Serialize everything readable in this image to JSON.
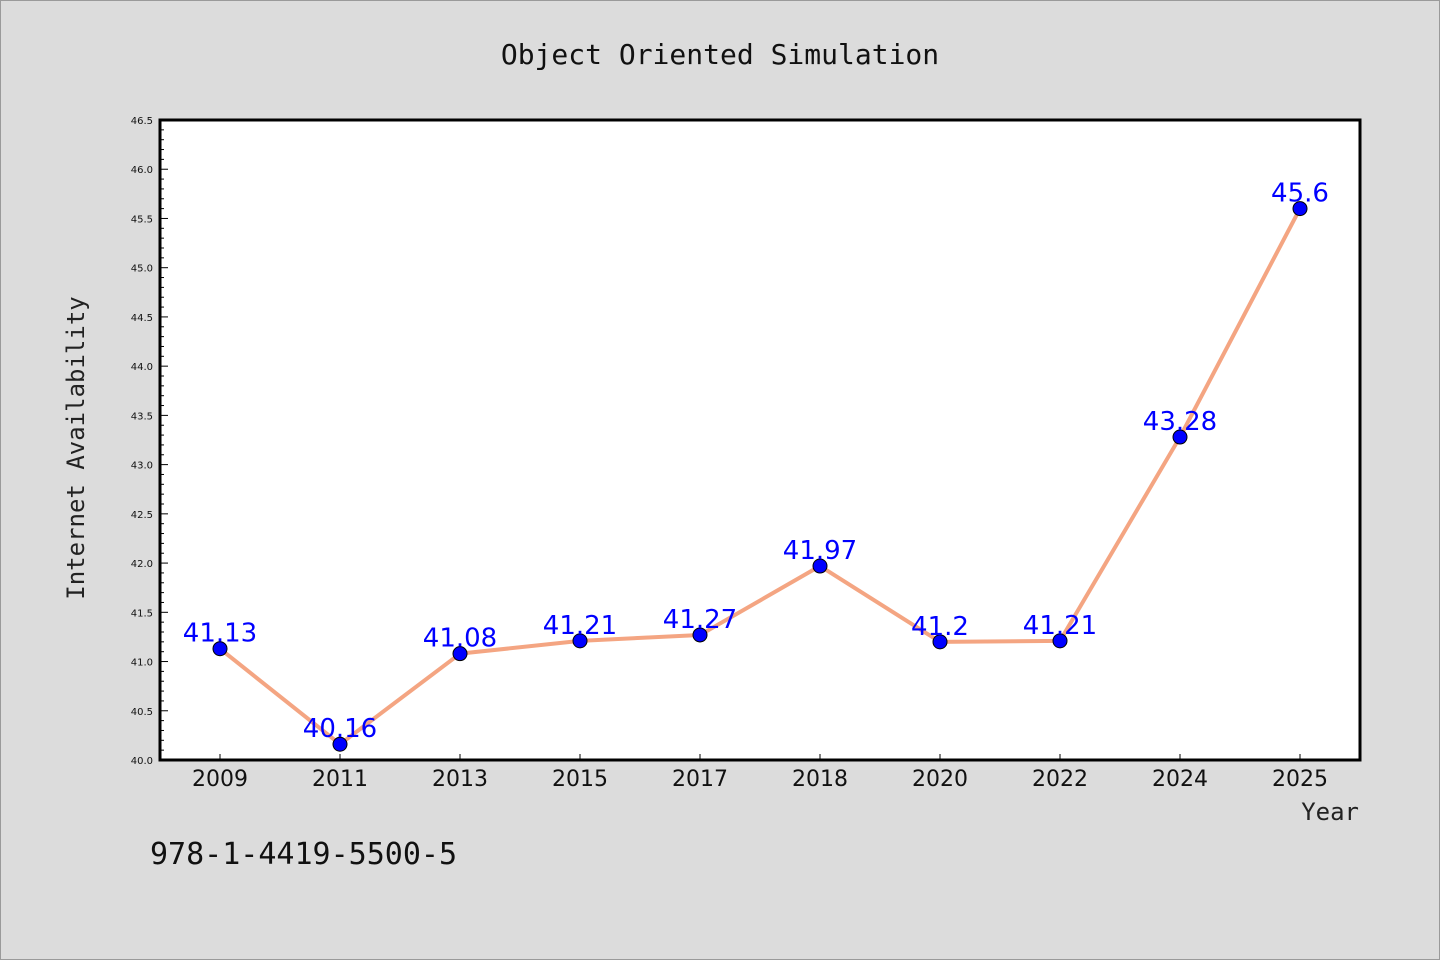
{
  "chart_data": {
    "type": "line",
    "title": "Object Oriented Simulation",
    "xlabel": "Year",
    "ylabel": "Internet Availability",
    "categories": [
      "2009",
      "2011",
      "2013",
      "2015",
      "2017",
      "2018",
      "2020",
      "2022",
      "2024",
      "2025"
    ],
    "values": [
      41.13,
      40.16,
      41.08,
      41.21,
      41.27,
      41.97,
      41.2,
      41.21,
      43.28,
      45.6
    ],
    "data_labels": [
      "41.13",
      "40.16",
      "41.08",
      "41.21",
      "41.27",
      "41.97",
      "41.2",
      "41.21",
      "43.28",
      "45.6"
    ],
    "ylim": [
      40.0,
      46.5
    ],
    "yticks": [
      "40.0",
      "40.5",
      "41.0",
      "41.5",
      "42.0",
      "42.5",
      "43.0",
      "43.5",
      "44.0",
      "44.5",
      "45.0",
      "45.5",
      "46.0",
      "46.5"
    ],
    "grid": false,
    "line_color": "#f4a582",
    "marker_color": "#0000ff",
    "label_color": "#0000ff"
  },
  "footnote": "978-1-4419-5500-5"
}
